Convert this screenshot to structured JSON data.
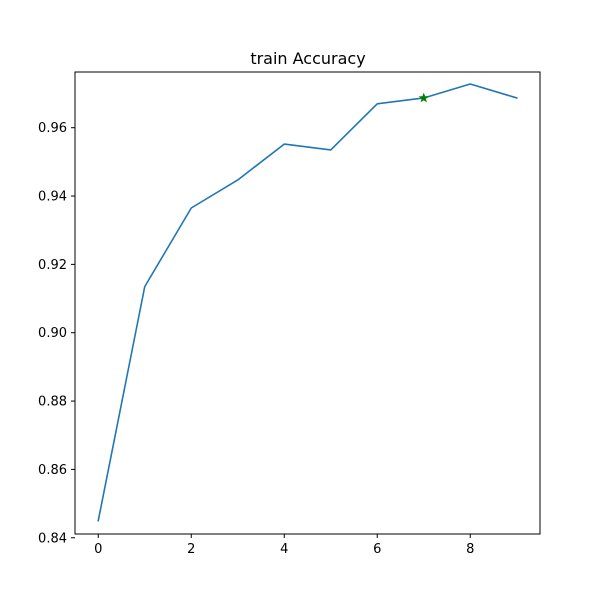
{
  "chart_data": {
    "type": "line",
    "title": "train Accuracy",
    "xlabel": "",
    "ylabel": "",
    "xlim": [
      -0.5,
      9.5
    ],
    "ylim": [
      0.8411,
      0.9763
    ],
    "grid": false,
    "xticks": [
      0,
      2,
      4,
      6,
      8
    ],
    "yticks": [
      0.84,
      0.86,
      0.88,
      0.9,
      0.92,
      0.94,
      0.96
    ],
    "xtick_labels": [
      "0",
      "2",
      "4",
      "6",
      "8"
    ],
    "ytick_labels": [
      "0.84",
      "0.86",
      "0.88",
      "0.90",
      "0.92",
      "0.94",
      "0.96"
    ],
    "series": [
      {
        "x": [
          0,
          1,
          2,
          3,
          4,
          5,
          6,
          7,
          8,
          9
        ],
        "values": [
          0.845,
          0.9135,
          0.9365,
          0.9447,
          0.9552,
          0.9535,
          0.967,
          0.9687,
          0.9728,
          0.9687
        ],
        "color": "#1f77b4"
      }
    ],
    "marker": {
      "x": 7,
      "y": 0.9687,
      "shape": "star",
      "color": "#008000"
    }
  }
}
